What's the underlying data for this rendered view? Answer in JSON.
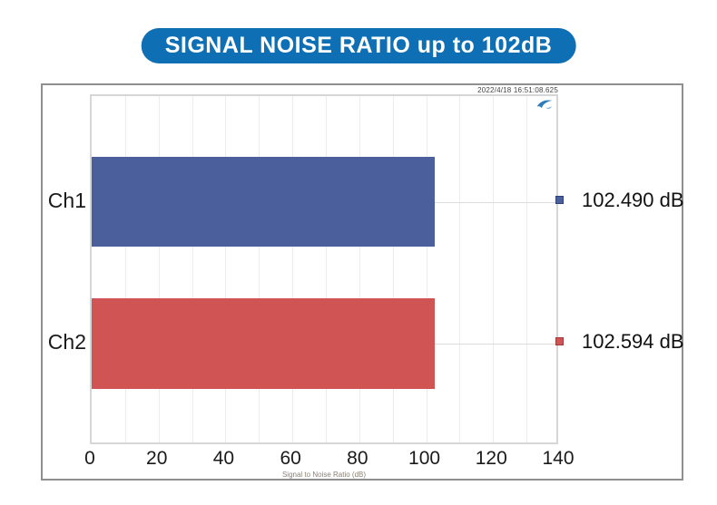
{
  "banner": {
    "title": "SIGNAL NOISE RATIO up to 102dB",
    "bg_color": "#0e6fb5",
    "text_color": "#ffffff"
  },
  "chart": {
    "timestamp": "2022/4/18 16:51:08.625",
    "logo_icon": "swoosh-logo-icon"
  },
  "chart_data": {
    "type": "bar",
    "orientation": "horizontal",
    "title": "",
    "categories": [
      "Ch1",
      "Ch2"
    ],
    "values": [
      102.49,
      102.594
    ],
    "value_labels": [
      "102.490 dB",
      "102.594 dB"
    ],
    "series_colors": [
      "#4b5f9d",
      "#d05454"
    ],
    "marker_border_colors": [
      "#2f4178",
      "#9e3c3c"
    ],
    "xlabel": "Signal to Noise Ratio (dB)",
    "ylabel": "",
    "xlim": [
      0,
      140
    ],
    "xticks": [
      0,
      20,
      40,
      60,
      80,
      100,
      120,
      140
    ],
    "minor_grid_step": 10,
    "grid": true,
    "grid_color": "#ececec",
    "legend_position": "right"
  }
}
